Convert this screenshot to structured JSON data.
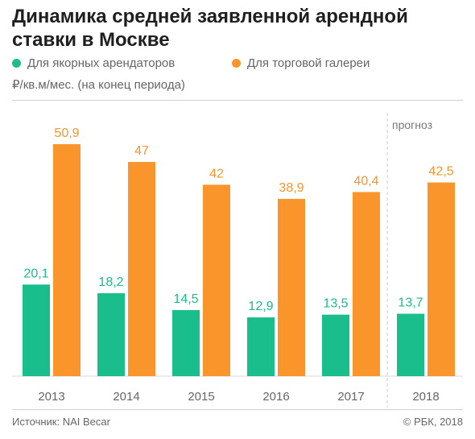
{
  "header": {
    "title": "Динамика средней заявленной арендной ставки в Москве",
    "unit_label": "₽/кв.м/мес. (на конец периода)"
  },
  "legend": [
    {
      "label": "Для якорных арендаторов",
      "color": "#1abd8c"
    },
    {
      "label": "Для торговой галереи",
      "color": "#f9952a"
    }
  ],
  "chart_data": {
    "type": "bar",
    "categories": [
      "2013",
      "2014",
      "2015",
      "2016",
      "2017",
      "2018"
    ],
    "series": [
      {
        "name": "Для якорных арендаторов",
        "values": [
          20.1,
          18.2,
          14.5,
          12.9,
          13.5,
          13.7
        ],
        "labels": [
          "20,1",
          "18,2",
          "14,5",
          "12,9",
          "13,5",
          "13,7"
        ],
        "color": "#1abd8c"
      },
      {
        "name": "Для торговой галереи",
        "values": [
          50.9,
          47,
          42,
          38.9,
          40.4,
          42.5
        ],
        "labels": [
          "50,9",
          "47",
          "42",
          "38,9",
          "40,4",
          "42,5"
        ],
        "color": "#f9952a"
      }
    ],
    "ylim": [
      0,
      52.5
    ],
    "forecast_label": "прогноз",
    "forecast_from": "2018",
    "grid": false
  },
  "footer": {
    "source": "Источник: NAI Becar",
    "copyright": "© РБК, 2018"
  }
}
